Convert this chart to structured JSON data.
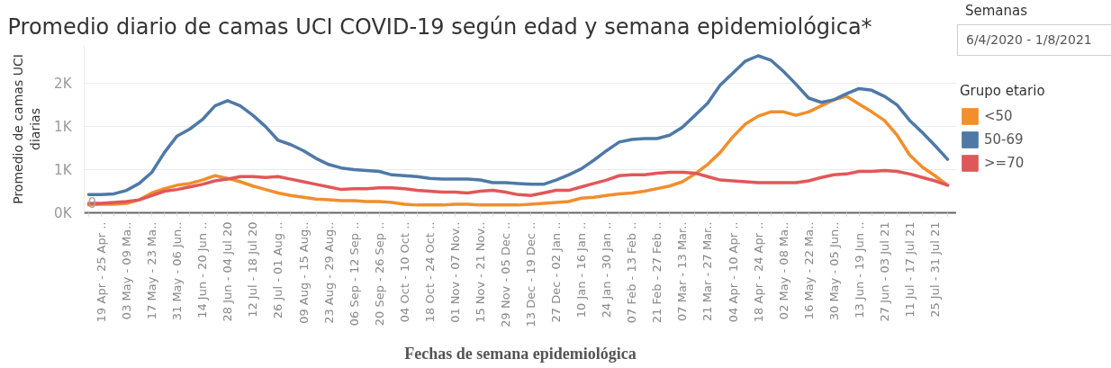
{
  "chart_data": {
    "type": "line",
    "title": "Promedio diario de camas UCI COVID-19 según edad y semana epidemiológica*",
    "xlabel": "Fechas de semana epidemiológica",
    "ylabel": "Promedio de camas UCI diarias",
    "legend_title": "Grupo etario",
    "annotations": [
      "Semanas",
      "6/4/2020 - 1/8/2021",
      "0"
    ],
    "categories": [
      null,
      "19 Apr - 25 Apr ..",
      null,
      "03 May - 09 Ma..",
      null,
      "17 May - 23 Ma..",
      null,
      "31 May - 06 Jun..",
      null,
      "14 Jun - 20 Jun ..",
      null,
      "28 Jun - 04 Jul 20",
      null,
      "12 Jul - 18 Jul 20",
      null,
      "26 Jul - 01 Aug ..",
      null,
      "09 Aug - 15 Aug..",
      null,
      "23 Aug - 29 Aug..",
      null,
      "06 Sep - 12 Sep ..",
      null,
      "20 Sep - 26 Sep ..",
      null,
      "04 Oct - 10 Oct ..",
      null,
      "18 Oct - 24 Oct ..",
      null,
      "01 Nov - 07 Nov..",
      null,
      "15 Nov - 21 Nov..",
      null,
      "29 Nov - 05 Dec ..",
      null,
      "13 Dec - 19 Dec ..",
      null,
      "27 Dec - 02 Jan ..",
      null,
      "10 Jan - 16 Jan ..",
      null,
      "24 Jan - 30 Jan ..",
      null,
      "07 Feb - 13 Feb ..",
      null,
      "21 Feb - 27 Feb ..",
      null,
      "07 Mar - 13 Mar..",
      null,
      "21 Mar - 27 Mar..",
      null,
      "04 Apr - 10 Apr ..",
      null,
      "18 Apr - 24 Apr ..",
      null,
      "02 May - 08 Ma..",
      null,
      "16 May - 22 Ma..",
      null,
      "30 May - 05 Jun..",
      null,
      "13 Jun - 19 Jun ..",
      null,
      "27 Jun - 03 Jul 21",
      null,
      "11 Jul - 17 Jul 21",
      null,
      "25 Jul - 31 Jul 21",
      null
    ],
    "series": [
      {
        "name": "<50",
        "color": "#f28e2b",
        "values": [
          90,
          100,
          100,
          110,
          150,
          230,
          280,
          320,
          340,
          380,
          430,
          400,
          360,
          310,
          270,
          230,
          200,
          180,
          160,
          150,
          140,
          140,
          130,
          130,
          120,
          100,
          90,
          90,
          90,
          100,
          100,
          90,
          90,
          90,
          90,
          100,
          110,
          120,
          130,
          170,
          180,
          200,
          220,
          230,
          250,
          280,
          310,
          360,
          450,
          560,
          700,
          880,
          1030,
          1120,
          1170,
          1170,
          1130,
          1170,
          1240,
          1310,
          1350,
          1260,
          1170,
          1070,
          900,
          670,
          530,
          430,
          320
        ]
      },
      {
        "name": "50-69",
        "color": "#4e79a7",
        "values": [
          210,
          210,
          220,
          260,
          340,
          470,
          700,
          890,
          970,
          1080,
          1240,
          1300,
          1240,
          1130,
          1000,
          840,
          790,
          720,
          630,
          560,
          520,
          500,
          490,
          480,
          440,
          430,
          420,
          400,
          390,
          390,
          390,
          380,
          350,
          350,
          340,
          330,
          330,
          380,
          440,
          510,
          610,
          720,
          820,
          850,
          860,
          860,
          900,
          990,
          1130,
          1270,
          1480,
          1620,
          1760,
          1820,
          1770,
          1640,
          1490,
          1330,
          1280,
          1310,
          1380,
          1440,
          1420,
          1350,
          1250,
          1070,
          930,
          780,
          620
        ]
      },
      {
        "name": ">=70",
        "color": "#e15759",
        "values": [
          110,
          110,
          120,
          130,
          150,
          200,
          250,
          270,
          300,
          330,
          370,
          390,
          420,
          420,
          410,
          420,
          390,
          360,
          330,
          300,
          270,
          280,
          280,
          290,
          290,
          280,
          260,
          250,
          240,
          240,
          230,
          250,
          260,
          240,
          210,
          200,
          230,
          260,
          260,
          300,
          340,
          380,
          430,
          440,
          440,
          460,
          470,
          470,
          460,
          420,
          380,
          370,
          360,
          350,
          350,
          350,
          350,
          370,
          410,
          440,
          450,
          480,
          480,
          490,
          480,
          450,
          410,
          370,
          320
        ]
      }
    ],
    "ylim": [
      0,
      1940
    ],
    "yticks": [
      {
        "value": 0,
        "label": "0K"
      },
      {
        "value": 500,
        "label": "1K"
      },
      {
        "value": 1000,
        "label": "1K"
      },
      {
        "value": 1500,
        "label": "2K"
      }
    ],
    "grid": "y",
    "legend": "right",
    "line_style": "solid"
  }
}
